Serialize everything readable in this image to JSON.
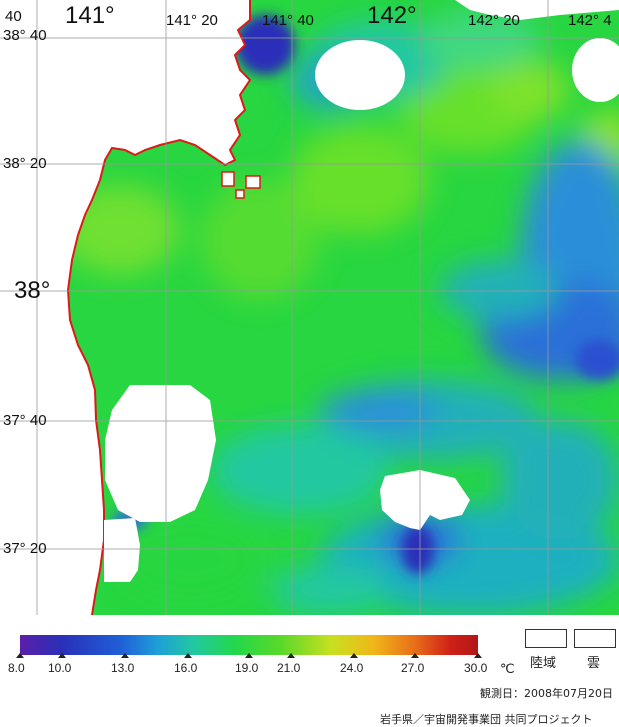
{
  "map": {
    "title_lat_labels": [
      {
        "text": "38° 40",
        "key": "lat_3840"
      },
      {
        "text": "38° 20",
        "key": "lat_3820"
      },
      {
        "text": "38°",
        "key": "lat_38"
      },
      {
        "text": "37° 40",
        "key": "lat_3740"
      },
      {
        "text": "37° 20",
        "key": "lat_3720"
      }
    ],
    "lon_labels": [
      {
        "text": "141°",
        "key": "lon_141"
      },
      {
        "text": "141° 20",
        "key": "lon_14120"
      },
      {
        "text": "141° 40",
        "key": "lon_14140"
      },
      {
        "text": "142°",
        "key": "lon_142"
      },
      {
        "text": "142° 20",
        "key": "lon_14220"
      },
      {
        "text": "142° 4",
        "key": "lon_1424"
      }
    ],
    "corner_label": "40",
    "colors": {
      "sea_green": "#22d84a",
      "sea_lightgreen": "#6fe030",
      "sea_cyan": "#22c8a0",
      "sea_blue": "#2a6fd8",
      "deep_blue": "#2a2fb8",
      "coast": "#e01818",
      "land": "#ffffff",
      "cloud": "#ffffff"
    }
  },
  "legend": {
    "ticks": [
      "8.0",
      "10.0",
      "13.0",
      "16.0",
      "19.0",
      "21.0",
      "24.0",
      "27.0",
      "30.0"
    ],
    "unit": "℃",
    "land_label": "陸域",
    "cloud_label": "雲",
    "observation_date": "観測日：2008年07月20日",
    "credit": "岩手県／宇宙開発事業団 共同プロジェクト"
  }
}
